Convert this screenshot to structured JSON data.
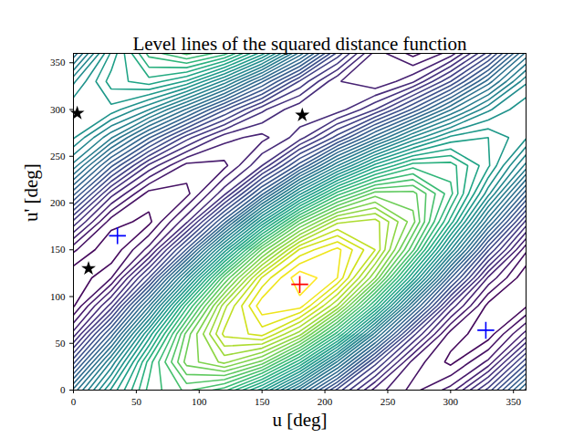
{
  "chart_data": {
    "type": "contour",
    "title": "Level lines of the squared distance function",
    "x_label": "u [deg]",
    "y_label": "u' [deg]",
    "xlim": [
      0,
      360
    ],
    "ylim": [
      0,
      360
    ],
    "xticks": [
      0,
      50,
      100,
      150,
      200,
      250,
      300,
      350
    ],
    "yticks": [
      0,
      50,
      100,
      150,
      200,
      250,
      300,
      350
    ],
    "grid": false,
    "color": "viridis",
    "cells": {
      "x": [
        0,
        30,
        60,
        90,
        120,
        150,
        180,
        210,
        240,
        270,
        300,
        330,
        360
      ],
      "y": [
        0,
        30,
        60,
        90,
        120,
        150,
        180,
        210,
        240,
        270,
        300,
        330,
        360
      ],
      "z": [
        [
          4.66,
          6.04,
          7.07,
          7.45,
          7.09,
          6.09,
          4.72,
          3.33,
          2.31,
          1.93,
          2.28,
          3.28,
          4.66
        ],
        [
          3.53,
          5.23,
          6.89,
          8.08,
          8.46,
          7.94,
          6.66,
          4.96,
          3.3,
          2.12,
          1.74,
          2.25,
          3.53
        ],
        [
          2.48,
          4.08,
          6.05,
          7.88,
          9.06,
          9.28,
          8.49,
          6.89,
          4.91,
          3.09,
          1.9,
          1.68,
          2.48
        ],
        [
          1.77,
          2.89,
          4.77,
          6.91,
          8.73,
          9.75,
          9.7,
          8.58,
          6.7,
          4.56,
          2.74,
          1.72,
          1.77
        ],
        [
          1.62,
          1.99,
          3.39,
          5.43,
          7.57,
          9.23,
          9.97,
          9.6,
          8.2,
          6.16,
          4.02,
          2.36,
          1.62
        ],
        [
          2.04,
          1.62,
          2.28,
          3.83,
          5.87,
          7.85,
          9.24,
          9.66,
          9.0,
          7.45,
          5.41,
          3.43,
          2.04
        ],
        [
          2.94,
          1.88,
          1.74,
          2.55,
          4.11,
          5.99,
          7.69,
          8.75,
          8.89,
          8.08,
          6.52,
          4.64,
          2.94
        ],
        [
          4.07,
          2.69,
          1.91,
          1.93,
          2.74,
          4.14,
          5.74,
          7.11,
          7.9,
          7.88,
          7.07,
          5.67,
          4.07
        ],
        [
          5.13,
          3.85,
          2.75,
          2.12,
          2.14,
          2.8,
          3.91,
          5.19,
          6.29,
          6.92,
          6.9,
          6.24,
          5.13
        ],
        [
          5.83,
          5.03,
          4.03,
          3.09,
          2.47,
          2.33,
          2.7,
          3.5,
          4.5,
          5.44,
          6.06,
          6.2,
          5.83
        ],
        [
          5.98,
          5.93,
          5.41,
          4.57,
          3.63,
          2.85,
          2.43,
          2.48,
          3.0,
          3.84,
          4.78,
          5.56,
          5.98
        ],
        [
          5.56,
          6.3,
          6.52,
          6.17,
          5.33,
          4.23,
          3.17,
          2.42,
          2.2,
          2.56,
          3.4,
          4.49,
          5.56
        ],
        [
          4.66,
          6.04,
          7.07,
          7.45,
          7.09,
          6.09,
          4.72,
          3.33,
          2.31,
          1.93,
          2.28,
          3.28,
          4.66
        ]
      ]
    },
    "markers": [
      {
        "marker": "plus",
        "color": "red",
        "x": [
          180
        ],
        "y": [
          113
        ]
      },
      {
        "marker": "plus",
        "color": "blue",
        "x": [
          35,
          328
        ],
        "y": [
          165,
          64
        ]
      },
      {
        "marker": "star",
        "color": "black",
        "x": [
          3,
          12,
          182
        ],
        "y": [
          296,
          130,
          294
        ]
      }
    ]
  }
}
